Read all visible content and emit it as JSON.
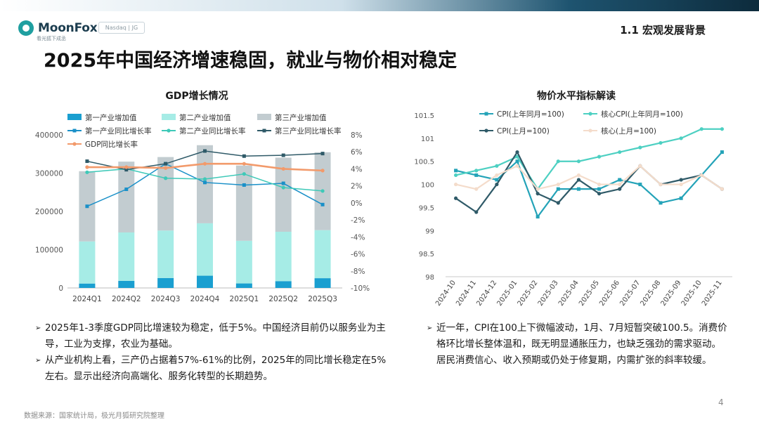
{
  "header": {
    "brand_name": "MoonFox",
    "brand_sub": "看光狐下成丞",
    "exchange_badge": "Nasdaq | JG",
    "section": "1.1 宏观发展背景",
    "title": "2025年中国经济增速稳固，就业与物价相对稳定"
  },
  "footer": {
    "source": "数据来源：国家统计局，极光月狐研究院整理",
    "page_number": "4"
  },
  "left_text": [
    "2025年1-3季度GDP同比增速较为稳定，低于5%。中国经济目前仍以服务业为主导，工业为支撑，农业为基础。",
    "从产业机构上看，三产仍占据着57%-61%的比例，2025年的同比增长稳定在5%左右。显示出经济向高端化、服务化转型的长期趋势。"
  ],
  "right_text": [
    "近一年，CPI在100上下微幅波动，1月、7月短暂突破100.5。消费价格环比增长整体温和，既无明显通胀压力，也缺乏强劲的需求驱动。居民消费信心、收入预期或仍处于修复期，内需扩张的斜率较缓。"
  ],
  "chart_data": [
    {
      "type": "bar",
      "title": "GDP增长情况",
      "categories": [
        "2024Q1",
        "2024Q2",
        "2024Q3",
        "2024Q4",
        "2025Q1",
        "2025Q2",
        "2025Q3"
      ],
      "ylim_left": [
        0,
        400000
      ],
      "yticks_left": [
        "0",
        "100000",
        "200000",
        "300000",
        "400000"
      ],
      "ylim_right": [
        -10,
        8
      ],
      "yticks_right": [
        "-10%",
        "-8%",
        "-6%",
        "-4%",
        "-2%",
        "0%",
        "2%",
        "4%",
        "6%",
        "8%"
      ],
      "bar_series": [
        {
          "name": "第一产业增加值",
          "color": "#1a9fd0",
          "values": [
            11500,
            18500,
            26000,
            32000,
            11800,
            17800,
            25500
          ]
        },
        {
          "name": "第二产业增加值",
          "color": "#a6ece6",
          "values": [
            110000,
            126500,
            124000,
            137000,
            111500,
            129000,
            125500
          ]
        },
        {
          "name": "第三产业增加值",
          "color": "#c2ccd0",
          "values": [
            183500,
            185000,
            192000,
            204000,
            196500,
            193500,
            203500
          ]
        }
      ],
      "line_series": [
        {
          "name": "第一产业同比增长率",
          "color": "#1a90c8",
          "marker": "square",
          "values": [
            -0.4,
            1.6,
            4.6,
            2.4,
            2.1,
            2.3,
            -0.2
          ]
        },
        {
          "name": "第二产业同比增长率",
          "color": "#3ec9b8",
          "marker": "circle",
          "values": [
            3.6,
            4.0,
            2.9,
            2.8,
            3.4,
            1.8,
            1.4
          ]
        },
        {
          "name": "第三产业同比增长率",
          "color": "#2f5a68",
          "marker": "square",
          "values": [
            4.9,
            3.9,
            4.6,
            6.1,
            5.5,
            5.6,
            5.8
          ]
        },
        {
          "name": "GDP同比增长率",
          "color": "#f29a6b",
          "marker": "circle",
          "values": [
            4.2,
            4.2,
            4.1,
            4.6,
            4.6,
            4.0,
            3.8
          ]
        }
      ]
    },
    {
      "type": "line",
      "title": "物价水平指标解读",
      "categories": [
        "2024-10",
        "2024-11",
        "2024-12",
        "2025-01",
        "2025-02",
        "2025-03",
        "2025-04",
        "2025-05",
        "2025-06",
        "2025-07",
        "2025-08",
        "2025-09",
        "2025-10",
        "2025-11"
      ],
      "ylim": [
        98,
        101.5
      ],
      "yticks": [
        "98",
        "98.5",
        "99",
        "99.5",
        "100",
        "100.5",
        "101",
        "101.5"
      ],
      "series": [
        {
          "name": "CPI(上年同月=100)",
          "color": "#24a3b8",
          "marker": "square",
          "values": [
            100.3,
            100.2,
            100.1,
            100.5,
            99.3,
            99.9,
            99.9,
            99.9,
            100.1,
            100.0,
            99.6,
            99.7,
            100.2,
            100.7
          ]
        },
        {
          "name": "核心CPI(上年同月=100)",
          "color": "#4dd0c2",
          "marker": "circle",
          "values": [
            100.2,
            100.3,
            100.4,
            100.6,
            99.9,
            100.5,
            100.5,
            100.6,
            100.7,
            100.8,
            100.9,
            101.0,
            101.2,
            101.2
          ]
        },
        {
          "name": "CPI(上月=100)",
          "color": "#2f5a68",
          "marker": "circle",
          "values": [
            99.7,
            99.4,
            100.0,
            100.7,
            99.8,
            99.6,
            100.1,
            99.8,
            99.9,
            100.4,
            100.0,
            100.1,
            100.2,
            99.9
          ]
        },
        {
          "name": "核心(上月=100)",
          "color": "#f4dccb",
          "marker": "circle",
          "values": [
            100.0,
            99.9,
            100.2,
            100.4,
            99.9,
            100.0,
            100.2,
            100.0,
            100.0,
            100.4,
            100.0,
            100.0,
            100.2,
            99.9
          ]
        }
      ]
    }
  ]
}
